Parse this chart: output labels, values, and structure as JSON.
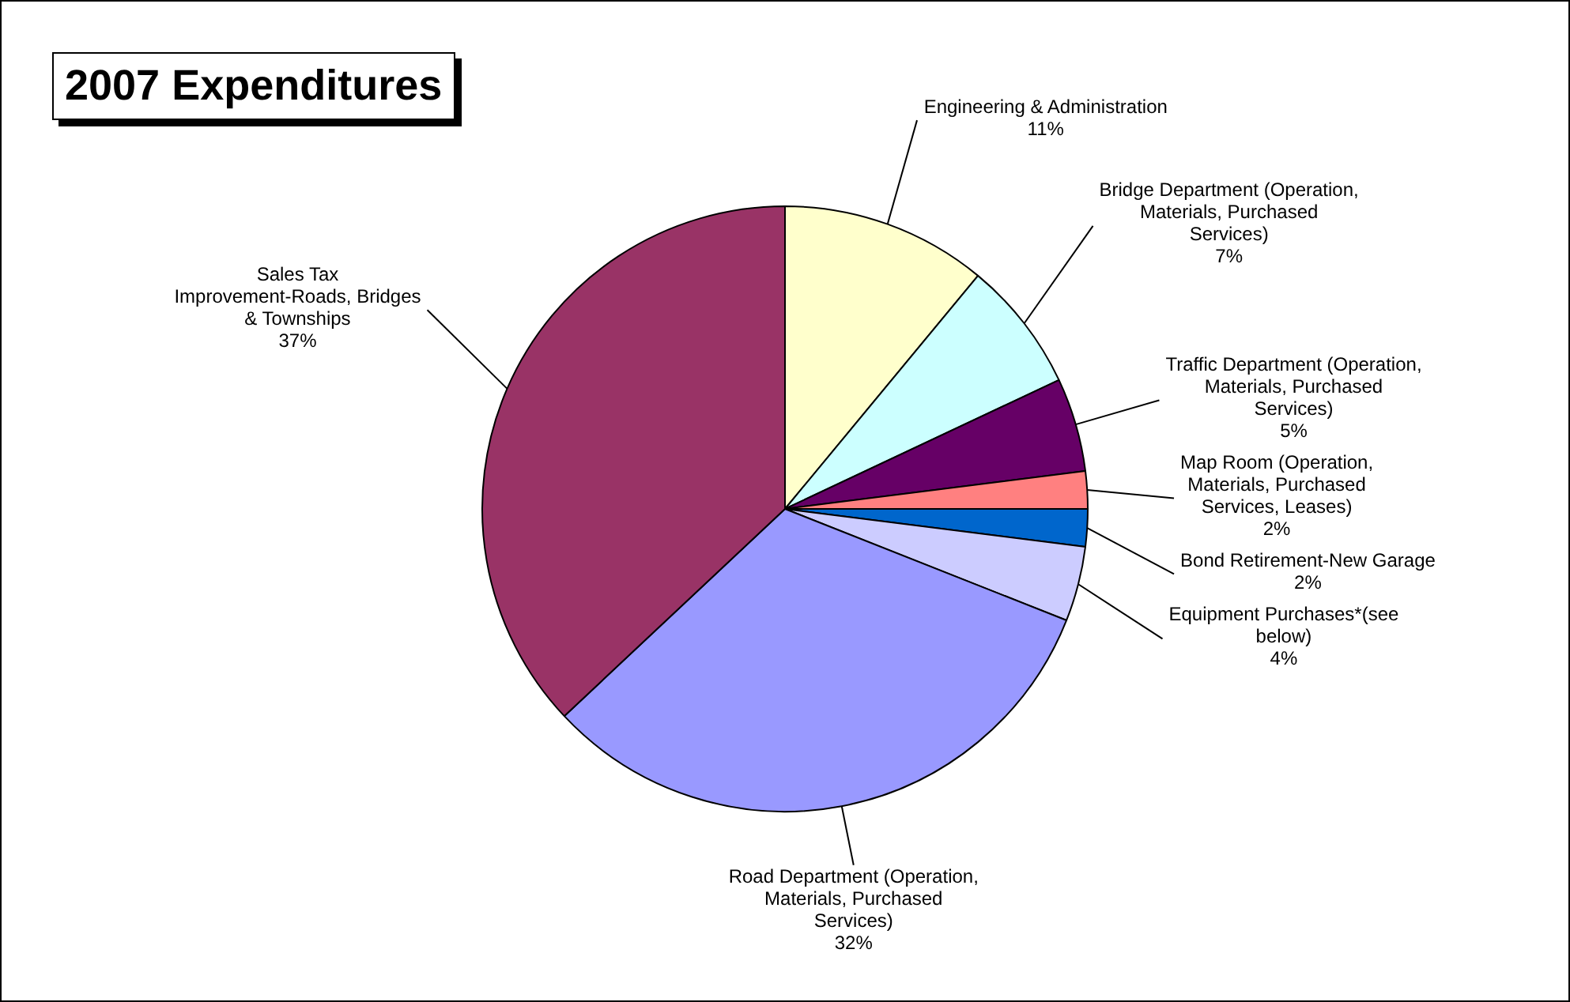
{
  "chart_data": {
    "type": "pie",
    "title": "2007 Expenditures",
    "categories": [
      "Engineering & Administration",
      "Bridge Department (Operation, Materials, Purchased Services)",
      "Traffic Department (Operation, Materials, Purchased Services)",
      "Map Room (Operation, Materials, Purchased Services, Leases)",
      "Bond Retirement-New Garage",
      "Equipment Purchases*(see below)",
      "Road Department (Operation, Materials, Purchased Services)",
      "Sales Tax Improvement-Roads, Bridges & Townships"
    ],
    "values": [
      11,
      7,
      5,
      2,
      2,
      4,
      32,
      37
    ],
    "value_labels": [
      "11%",
      "7%",
      "5%",
      "2%",
      "2%",
      "4%",
      "32%",
      "37%"
    ],
    "colors": [
      "#ffffcc",
      "#ccffff",
      "#660066",
      "#ff8080",
      "#0066cc",
      "#ccccff",
      "#9999ff",
      "#993366"
    ]
  }
}
